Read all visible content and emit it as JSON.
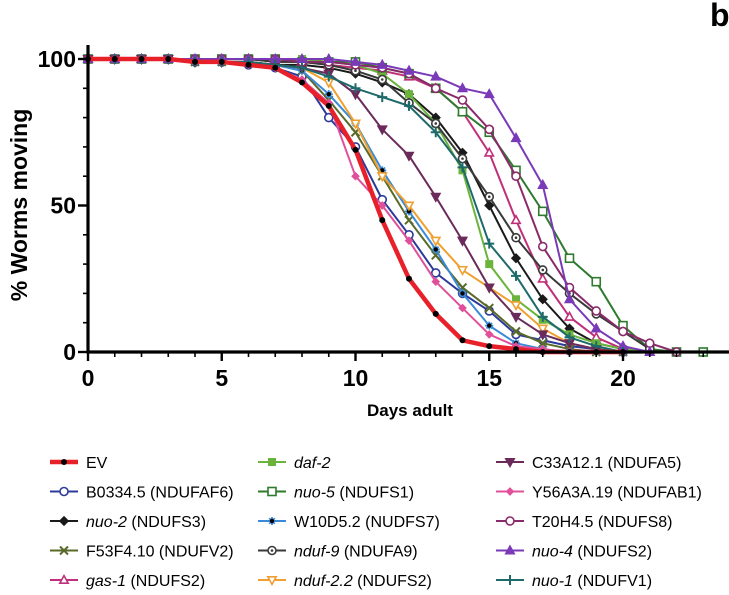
{
  "panel_letter": "b",
  "chart_data": {
    "type": "line",
    "title": "",
    "xlabel": "Days adult",
    "ylabel": "% Worms moving",
    "xlim": [
      0,
      24
    ],
    "ylim": [
      0,
      100
    ],
    "x_ticks": [
      0,
      5,
      10,
      15,
      20
    ],
    "y_ticks": [
      0,
      50,
      100
    ],
    "grid": false,
    "legend_position": "bottom",
    "series": [
      {
        "name": "EV",
        "name_italic": "",
        "name_rest": "EV",
        "color": "#e8202a",
        "marker": "dot",
        "bold": true,
        "x": [
          0,
          1,
          2,
          3,
          4,
          5,
          6,
          7,
          8,
          9,
          10,
          11,
          12,
          13,
          14,
          15,
          16,
          17,
          18,
          19,
          20
        ],
        "y": [
          100,
          100,
          100,
          100,
          99,
          99,
          98,
          97,
          92,
          84,
          69,
          45,
          25,
          13,
          4,
          2,
          1,
          0,
          0,
          0,
          0
        ]
      },
      {
        "name": "B0334.5 (NDUFAF6)",
        "name_italic": "",
        "name_rest": "B0334.5 (NDUFAF6)",
        "color": "#2c3a9a",
        "marker": "circle-open",
        "x": [
          0,
          1,
          2,
          3,
          4,
          5,
          6,
          7,
          8,
          9,
          10,
          11,
          12,
          13,
          14,
          15,
          16,
          17,
          18,
          19,
          20
        ],
        "y": [
          100,
          100,
          100,
          100,
          99,
          99,
          98,
          97,
          94,
          80,
          70,
          52,
          40,
          27,
          20,
          14,
          6,
          4,
          2,
          1,
          0
        ]
      },
      {
        "name": "nuo-2 (NDUFS3)",
        "name_italic": "nuo-2",
        "name_rest": " (NDUFS3)",
        "color": "#1a1a1a",
        "marker": "diamond",
        "x": [
          0,
          1,
          2,
          3,
          4,
          5,
          6,
          7,
          8,
          9,
          10,
          11,
          12,
          13,
          14,
          15,
          16,
          17,
          18,
          19,
          20,
          21
        ],
        "y": [
          100,
          100,
          100,
          100,
          99,
          99,
          99,
          98,
          98,
          97,
          95,
          92,
          88,
          80,
          68,
          50,
          32,
          18,
          8,
          3,
          1,
          0
        ]
      },
      {
        "name": "F53F4.10 (NDUFV2)",
        "name_italic": "",
        "name_rest": "F53F4.10 (NDUFV2)",
        "color": "#5a6a2a",
        "marker": "x",
        "x": [
          0,
          1,
          2,
          3,
          4,
          5,
          6,
          7,
          8,
          9,
          10,
          11,
          12,
          13,
          14,
          15,
          16,
          17,
          18,
          19,
          20
        ],
        "y": [
          100,
          100,
          100,
          100,
          99,
          99,
          99,
          98,
          96,
          86,
          75,
          60,
          45,
          33,
          22,
          15,
          7,
          3,
          1,
          0,
          0
        ]
      },
      {
        "name": "gas-1 (NDUFS2)",
        "name_italic": "gas-1",
        "name_rest": " (NDUFS2)",
        "color": "#c0307a",
        "marker": "triangle-open",
        "x": [
          0,
          1,
          2,
          3,
          4,
          5,
          6,
          7,
          8,
          9,
          10,
          11,
          12,
          13,
          14,
          15,
          16,
          17,
          18,
          19,
          20,
          21
        ],
        "y": [
          100,
          100,
          100,
          100,
          100,
          100,
          100,
          99,
          99,
          98,
          97,
          96,
          94,
          90,
          82,
          68,
          45,
          25,
          12,
          5,
          1,
          0
        ]
      },
      {
        "name": "daf-2",
        "name_italic": "daf-2",
        "name_rest": "",
        "color": "#6ab43c",
        "marker": "square",
        "x": [
          0,
          1,
          2,
          3,
          4,
          5,
          6,
          7,
          8,
          9,
          10,
          11,
          12,
          13,
          14,
          15,
          16,
          17,
          18,
          19,
          20,
          21,
          22,
          23
        ],
        "y": [
          100,
          100,
          100,
          100,
          100,
          100,
          100,
          100,
          100,
          99,
          98,
          95,
          88,
          78,
          62,
          30,
          18,
          11,
          6,
          3,
          1,
          0,
          0,
          0
        ]
      },
      {
        "name": "nuo-5 (NDUFS1)",
        "name_italic": "nuo-5",
        "name_rest": " (NDUFS1)",
        "color": "#2e7a2e",
        "marker": "square-open",
        "x": [
          0,
          1,
          2,
          3,
          4,
          5,
          6,
          7,
          8,
          9,
          10,
          11,
          12,
          13,
          14,
          15,
          16,
          17,
          18,
          19,
          20,
          21,
          22,
          23
        ],
        "y": [
          100,
          100,
          100,
          100,
          100,
          100,
          100,
          100,
          99,
          99,
          99,
          97,
          95,
          90,
          82,
          75,
          62,
          48,
          32,
          24,
          9,
          1,
          0,
          0
        ]
      },
      {
        "name": "W10D5.2 (NUDFS7)",
        "name_italic": "",
        "name_rest": "W10D5.2 (NUDFS7)",
        "color": "#3a8ad8",
        "marker": "star",
        "x": [
          0,
          1,
          2,
          3,
          4,
          5,
          6,
          7,
          8,
          9,
          10,
          11,
          12,
          13,
          14,
          15,
          16,
          17,
          18,
          19,
          20
        ],
        "y": [
          100,
          100,
          100,
          100,
          99,
          99,
          99,
          98,
          96,
          88,
          78,
          62,
          48,
          35,
          20,
          9,
          3,
          1,
          0,
          0,
          0
        ]
      },
      {
        "name": "nduf-9 (NDUFA9)",
        "name_italic": "nduf-9",
        "name_rest": " (NDUFA9)",
        "color": "#3a3a3a",
        "marker": "circle-dot",
        "x": [
          0,
          1,
          2,
          3,
          4,
          5,
          6,
          7,
          8,
          9,
          10,
          11,
          12,
          13,
          14,
          15,
          16,
          17,
          18,
          19,
          20,
          21
        ],
        "y": [
          100,
          100,
          100,
          100,
          100,
          100,
          100,
          99,
          99,
          98,
          96,
          93,
          85,
          78,
          66,
          53,
          39,
          28,
          20,
          13,
          7,
          1
        ]
      },
      {
        "name": "nduf-2.2 (NDUFS2)",
        "name_italic": "nduf-2.2",
        "name_rest": " (NDUFS2)",
        "color": "#f0a030",
        "marker": "triangle-down-open",
        "x": [
          0,
          1,
          2,
          3,
          4,
          5,
          6,
          7,
          8,
          9,
          10,
          11,
          12,
          13,
          14,
          15,
          16,
          17,
          18,
          19,
          20
        ],
        "y": [
          100,
          100,
          100,
          100,
          99,
          99,
          99,
          98,
          97,
          92,
          78,
          60,
          50,
          38,
          28,
          22,
          16,
          8,
          3,
          1,
          0
        ]
      },
      {
        "name": "C33A12.1 (NDUFA5)",
        "name_italic": "",
        "name_rest": "C33A12.1 (NDUFA5)",
        "color": "#6a2a5a",
        "marker": "triangle-down",
        "x": [
          0,
          1,
          2,
          3,
          4,
          5,
          6,
          7,
          8,
          9,
          10,
          11,
          12,
          13,
          14,
          15,
          16,
          17,
          18,
          19,
          20
        ],
        "y": [
          100,
          100,
          100,
          100,
          99,
          99,
          99,
          98,
          97,
          95,
          88,
          76,
          67,
          53,
          38,
          22,
          12,
          6,
          3,
          1,
          0
        ]
      },
      {
        "name": "Y56A3A.19 (NDUFAB1)",
        "name_italic": "",
        "name_rest": "Y56A3A.19 (NDUFAB1)",
        "color": "#e0509a",
        "marker": "diamond-small",
        "x": [
          0,
          1,
          2,
          3,
          4,
          5,
          6,
          7,
          8,
          9,
          10,
          11,
          12,
          13,
          14,
          15,
          16,
          17,
          18,
          19,
          20
        ],
        "y": [
          100,
          100,
          100,
          100,
          99,
          99,
          98,
          97,
          93,
          85,
          60,
          50,
          38,
          24,
          15,
          6,
          2,
          1,
          0,
          0,
          0
        ]
      },
      {
        "name": "T20H4.5 (NDUFS8)",
        "name_italic": "",
        "name_rest": "T20H4.5 (NDUFS8)",
        "color": "#8a2a6a",
        "marker": "circle-open",
        "x": [
          0,
          1,
          2,
          3,
          4,
          5,
          6,
          7,
          8,
          9,
          10,
          11,
          12,
          13,
          14,
          15,
          16,
          17,
          18,
          19,
          20,
          21,
          22
        ],
        "y": [
          100,
          100,
          100,
          100,
          100,
          100,
          100,
          100,
          99,
          99,
          98,
          97,
          95,
          90,
          86,
          76,
          60,
          36,
          22,
          14,
          7,
          3,
          0
        ]
      },
      {
        "name": "nuo-4 (NDUFS2)",
        "name_italic": "nuo-4",
        "name_rest": " (NDUFS2)",
        "color": "#7a3ab8",
        "marker": "triangle",
        "x": [
          0,
          1,
          2,
          3,
          4,
          5,
          6,
          7,
          8,
          9,
          10,
          11,
          12,
          13,
          14,
          15,
          16,
          17,
          18,
          19,
          20,
          21
        ],
        "y": [
          100,
          100,
          100,
          100,
          100,
          100,
          100,
          100,
          100,
          100,
          99,
          98,
          96,
          94,
          90,
          88,
          73,
          57,
          18,
          8,
          2,
          0
        ]
      },
      {
        "name": "nuo-1 (NDUFV1)",
        "name_italic": "nuo-1",
        "name_rest": " (NDUFV1)",
        "color": "#1e6a6a",
        "marker": "plus",
        "x": [
          0,
          1,
          2,
          3,
          4,
          5,
          6,
          7,
          8,
          9,
          10,
          11,
          12,
          13,
          14,
          15,
          16,
          17,
          18,
          19,
          20
        ],
        "y": [
          100,
          100,
          100,
          100,
          99,
          99,
          99,
          98,
          97,
          94,
          90,
          87,
          84,
          75,
          63,
          37,
          26,
          12,
          5,
          2,
          0
        ]
      }
    ]
  }
}
